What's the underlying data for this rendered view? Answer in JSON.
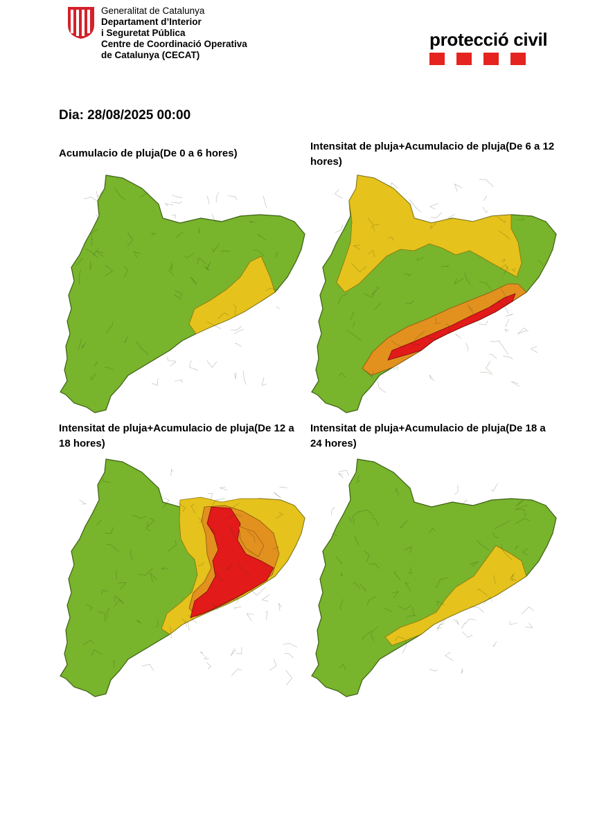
{
  "header": {
    "org_lines": [
      "Generalitat de Catalunya",
      "Departament d’Interior",
      "i Seguretat Pública",
      "Centre de Coordinació Operativa",
      "de Catalunya (CECAT)"
    ],
    "brand": "protecció civil"
  },
  "day_label": "Dia: 28/08/2025 00:00",
  "colors": {
    "green": "#78b42c",
    "yellow": "#e5c21c",
    "orange": "#e2901e",
    "red": "#e21a1a",
    "brand_red": "#e52420"
  },
  "panels": [
    {
      "title": "Acumulacio de pluja(De 0 a 6 hores)",
      "levels": [
        "green",
        "yellow"
      ]
    },
    {
      "title": "Intensitat de pluja+Acumulacio de pluja(De 6 a 12 hores)",
      "levels": [
        "green",
        "yellow",
        "orange",
        "red"
      ]
    },
    {
      "title": "Intensitat de pluja+Acumulacio de pluja(De 12 a 18 hores)",
      "levels": [
        "green",
        "yellow",
        "orange",
        "red"
      ]
    },
    {
      "title": "Intensitat de pluja+Acumulacio de pluja(De 18 a 24 hores)",
      "levels": [
        "green",
        "yellow"
      ]
    }
  ]
}
